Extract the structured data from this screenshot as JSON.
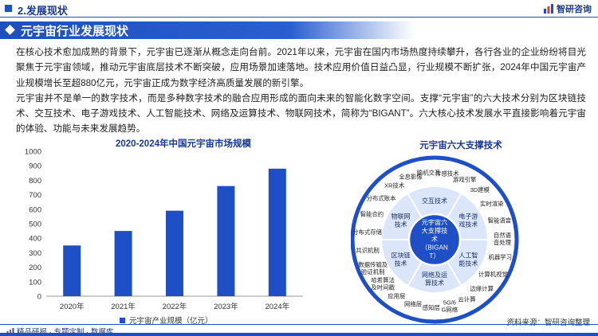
{
  "header": {
    "section_label": "2.发展现状",
    "brand_name": "智研咨询"
  },
  "banner": {
    "title": "元宇宙行业发展现状"
  },
  "body": {
    "paragraph1": "在核心技术愈加成熟的背景下，元宇宙已逐渐从概念走向台前。2021年以来，元宇宙在国内市场热度持续攀升，各行各业的企业纷纷将目光聚焦于元宇宙领域，推动元宇宙底层技术不断突破，应用场景加速落地。技术应用价值日益凸显，行业规模不断扩张，2024年中国元宇宙产业规模增长至超880亿元，元宇宙正成为数字经济高质量发展的新引擎。",
    "paragraph2": "元宇宙并不是单一的数字技术，而是多种数字技术的融合应用形成的面向未来的智能化数字空间。支撑“元宇宙”的六大技术分别为区块链技术、交互技术、电子游戏技术、人工智能技术、网络及运算技术、物联网技术，简称为“BIGANT”。六大核心技术发展水平直接影响着元宇宙的体验、功能与未来发展趋势。"
  },
  "chart_data": {
    "type": "bar",
    "title": "2020-2024年中国元宇宙市场规模",
    "categories": [
      "2020年",
      "2021年",
      "2022年",
      "2023年",
      "2024年"
    ],
    "series": [
      {
        "name": "元宇宙产业规模（亿元）",
        "values": [
          350,
          450,
          590,
          760,
          880
        ]
      }
    ],
    "ylim": [
      0,
      1000
    ],
    "yticks": [
      "0",
      "100",
      "200",
      "300",
      "400",
      "500",
      "600",
      "700",
      "800",
      "900",
      "1000"
    ],
    "grid": false,
    "legend": "bottom",
    "color": "#1f4fc4"
  },
  "diagram": {
    "title": "元宇宙六大支撑技术",
    "center": [
      "元宇宙六",
      "大支撑技",
      "术",
      "（BIGAN",
      "T）"
    ],
    "inner": [
      {
        "lines": [
          "交互技术"
        ]
      },
      {
        "lines": [
          "电子游",
          "戏技术"
        ]
      },
      {
        "lines": [
          "人工智",
          "能技术"
        ]
      },
      {
        "lines": [
          "网络及运",
          "算技术"
        ]
      },
      {
        "lines": [
          "区块链",
          "技术"
        ]
      },
      {
        "lines": [
          "物联网",
          "技术"
        ]
      }
    ],
    "outer": [
      "脑机交互",
      "传感技术",
      "游戏引擎",
      "3D建模",
      "实时渲染",
      "智能语音",
      "自然语音处理",
      "机器学习",
      "计算机视觉",
      "边缘计算",
      "云计算",
      "5G/6G网络",
      "感知层",
      "网络层",
      "应用层",
      "哈希算法及时间戳",
      "数据传输及验证机制",
      "共识机制",
      "分布式存储",
      "智能合约",
      "分布式账本",
      "XR技术",
      "全息影像"
    ],
    "colors": {
      "ring": "#1f4fc4",
      "light": "#dbe6fb",
      "mid": "#bcd0f6",
      "center": "#1f4fc4"
    }
  },
  "footer": {
    "left": "精品研报 · 专题定制 · 数据库",
    "source": "资料来源：智研咨询整理"
  }
}
